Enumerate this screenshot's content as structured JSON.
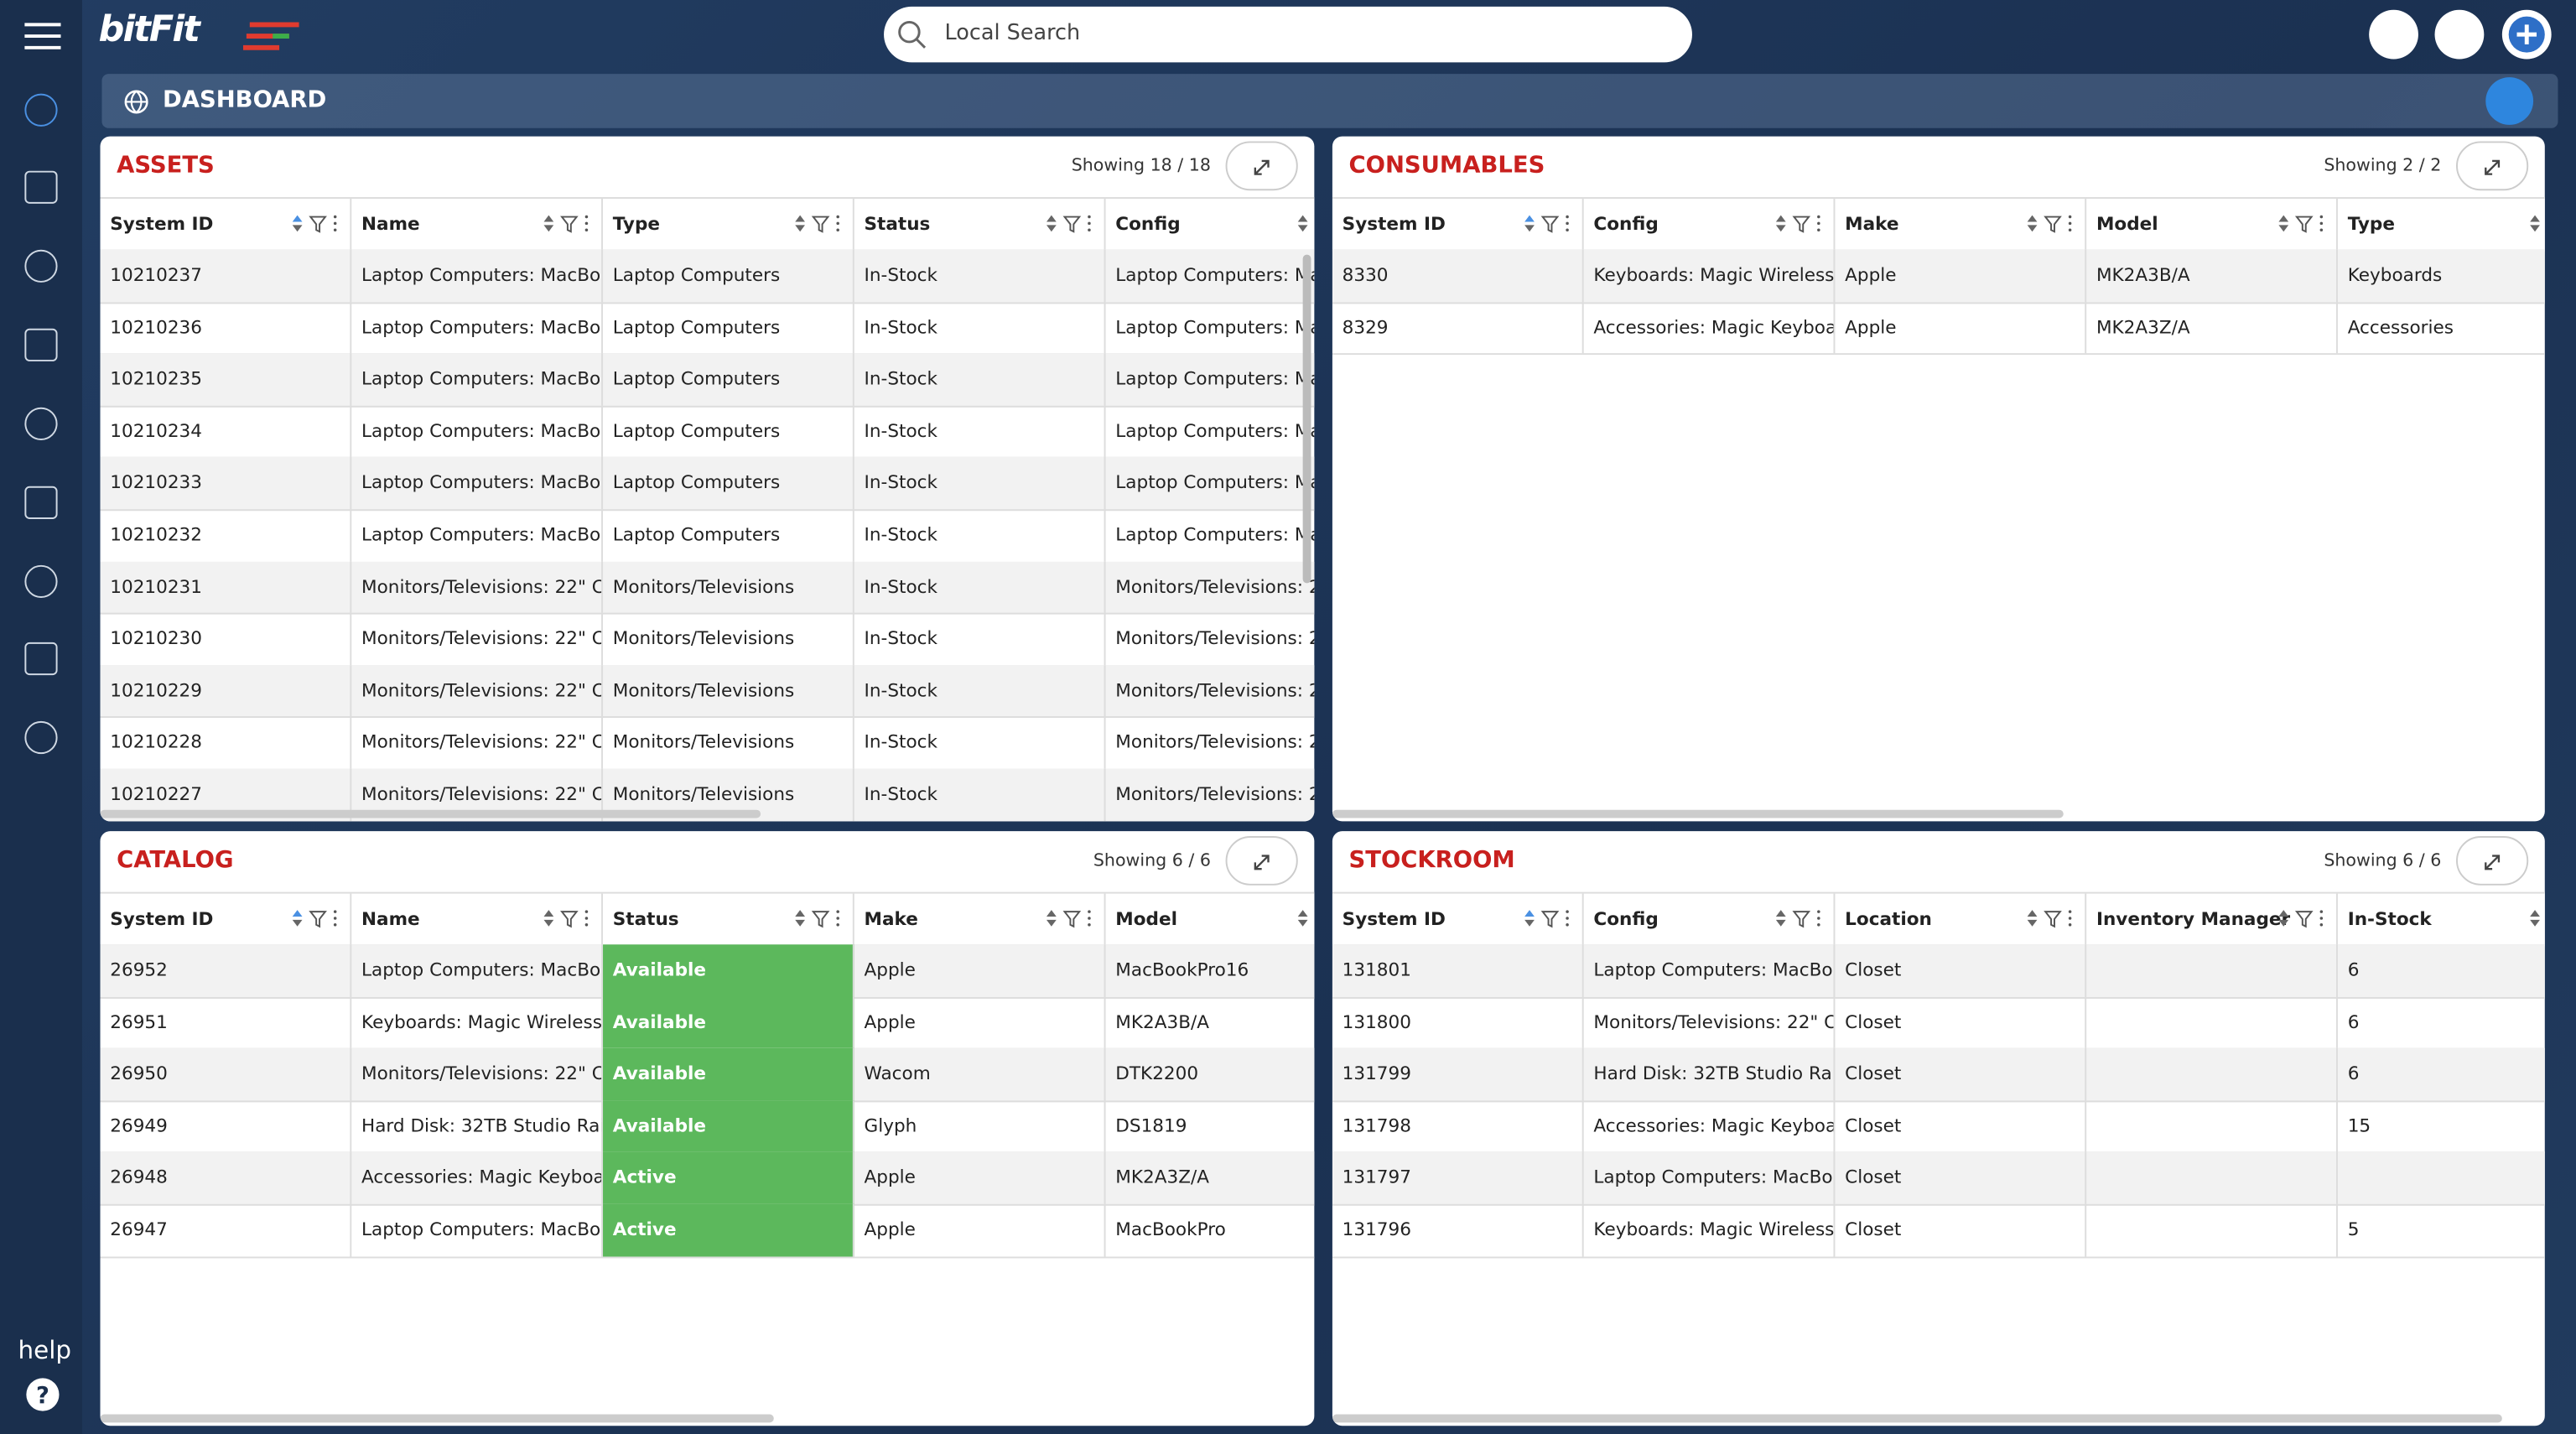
{
  "header": {
    "logo": "bitFit",
    "search_placeholder": "Local Search"
  },
  "breadcrumb": "DASHBOARD",
  "sidebar": {
    "help": "help"
  },
  "panels": [
    {
      "title": "ASSETS",
      "showing": "Showing 18 / 18",
      "columns": [
        "System ID",
        "Name",
        "Type",
        "Status",
        "Config"
      ],
      "rows": [
        [
          "10210237",
          "Laptop Computers: MacBo...",
          "Laptop Computers",
          "In-Stock",
          "Laptop Computers: Ma"
        ],
        [
          "10210236",
          "Laptop Computers: MacBo...",
          "Laptop Computers",
          "In-Stock",
          "Laptop Computers: Ma"
        ],
        [
          "10210235",
          "Laptop Computers: MacBo...",
          "Laptop Computers",
          "In-Stock",
          "Laptop Computers: Ma"
        ],
        [
          "10210234",
          "Laptop Computers: MacBo...",
          "Laptop Computers",
          "In-Stock",
          "Laptop Computers: Ma"
        ],
        [
          "10210233",
          "Laptop Computers: MacBo...",
          "Laptop Computers",
          "In-Stock",
          "Laptop Computers: Ma"
        ],
        [
          "10210232",
          "Laptop Computers: MacBo...",
          "Laptop Computers",
          "In-Stock",
          "Laptop Computers: Ma"
        ],
        [
          "10210231",
          "Monitors/Televisions: 22\" C...",
          "Monitors/Televisions",
          "In-Stock",
          "Monitors/Televisions: 2"
        ],
        [
          "10210230",
          "Monitors/Televisions: 22\" C...",
          "Monitors/Televisions",
          "In-Stock",
          "Monitors/Televisions: 2"
        ],
        [
          "10210229",
          "Monitors/Televisions: 22\" C...",
          "Monitors/Televisions",
          "In-Stock",
          "Monitors/Televisions: 2"
        ],
        [
          "10210228",
          "Monitors/Televisions: 22\" C...",
          "Monitors/Televisions",
          "In-Stock",
          "Monitors/Televisions: 2"
        ],
        [
          "10210227",
          "Monitors/Televisions: 22\" C...",
          "Monitors/Televisions",
          "In-Stock",
          "Monitors/Televisions: 2"
        ]
      ]
    },
    {
      "title": "CONSUMABLES",
      "showing": "Showing 2 / 2",
      "columns": [
        "System ID",
        "Config",
        "Make",
        "Model",
        "Type"
      ],
      "rows": [
        [
          "8330",
          "Keyboards: Magic Wireless ...",
          "Apple",
          "MK2A3B/A",
          "Keyboards"
        ],
        [
          "8329",
          "Accessories: Magic Keyboar...",
          "Apple",
          "MK2A3Z/A",
          "Accessories"
        ]
      ]
    },
    {
      "title": "CATALOG",
      "showing": "Showing 6 / 6",
      "columns": [
        "System ID",
        "Name",
        "Status",
        "Make",
        "Model"
      ],
      "rows": [
        [
          "26952",
          "Laptop Computers: MacBo...",
          "Available",
          "Apple",
          "MacBookPro16"
        ],
        [
          "26951",
          "Keyboards: Magic Wireless ...",
          "Available",
          "Apple",
          "MK2A3B/A"
        ],
        [
          "26950",
          "Monitors/Televisions: 22\" C...",
          "Available",
          "Wacom",
          "DTK2200"
        ],
        [
          "26949",
          "Hard Disk: 32TB Studio Rai...",
          "Available",
          "Glyph",
          "DS1819"
        ],
        [
          "26948",
          "Accessories: Magic Keyboar...",
          "Active",
          "Apple",
          "MK2A3Z/A"
        ],
        [
          "26947",
          "Laptop Computers: MacBo...",
          "Active",
          "Apple",
          "MacBookPro"
        ]
      ]
    },
    {
      "title": "STOCKROOM",
      "showing": "Showing 6 / 6",
      "columns": [
        "System ID",
        "Config",
        "Location",
        "Inventory Manager",
        "In-Stock"
      ],
      "rows": [
        [
          "131801",
          "Laptop Computers: MacBo...",
          "Closet",
          null,
          "6"
        ],
        [
          "131800",
          "Monitors/Televisions: 22\" C...",
          "Closet",
          null,
          "6"
        ],
        [
          "131799",
          "Hard Disk: 32TB Studio Rai...",
          "Closet",
          null,
          "6"
        ],
        [
          "131798",
          "Accessories: Magic Keyboar...",
          "Closet",
          null,
          "15"
        ],
        [
          "131797",
          "Laptop Computers: MacBo...",
          "Closet",
          null,
          null
        ],
        [
          "131796",
          "Keyboards: Magic Wireless ...",
          "Closet",
          null,
          "5"
        ]
      ]
    }
  ]
}
